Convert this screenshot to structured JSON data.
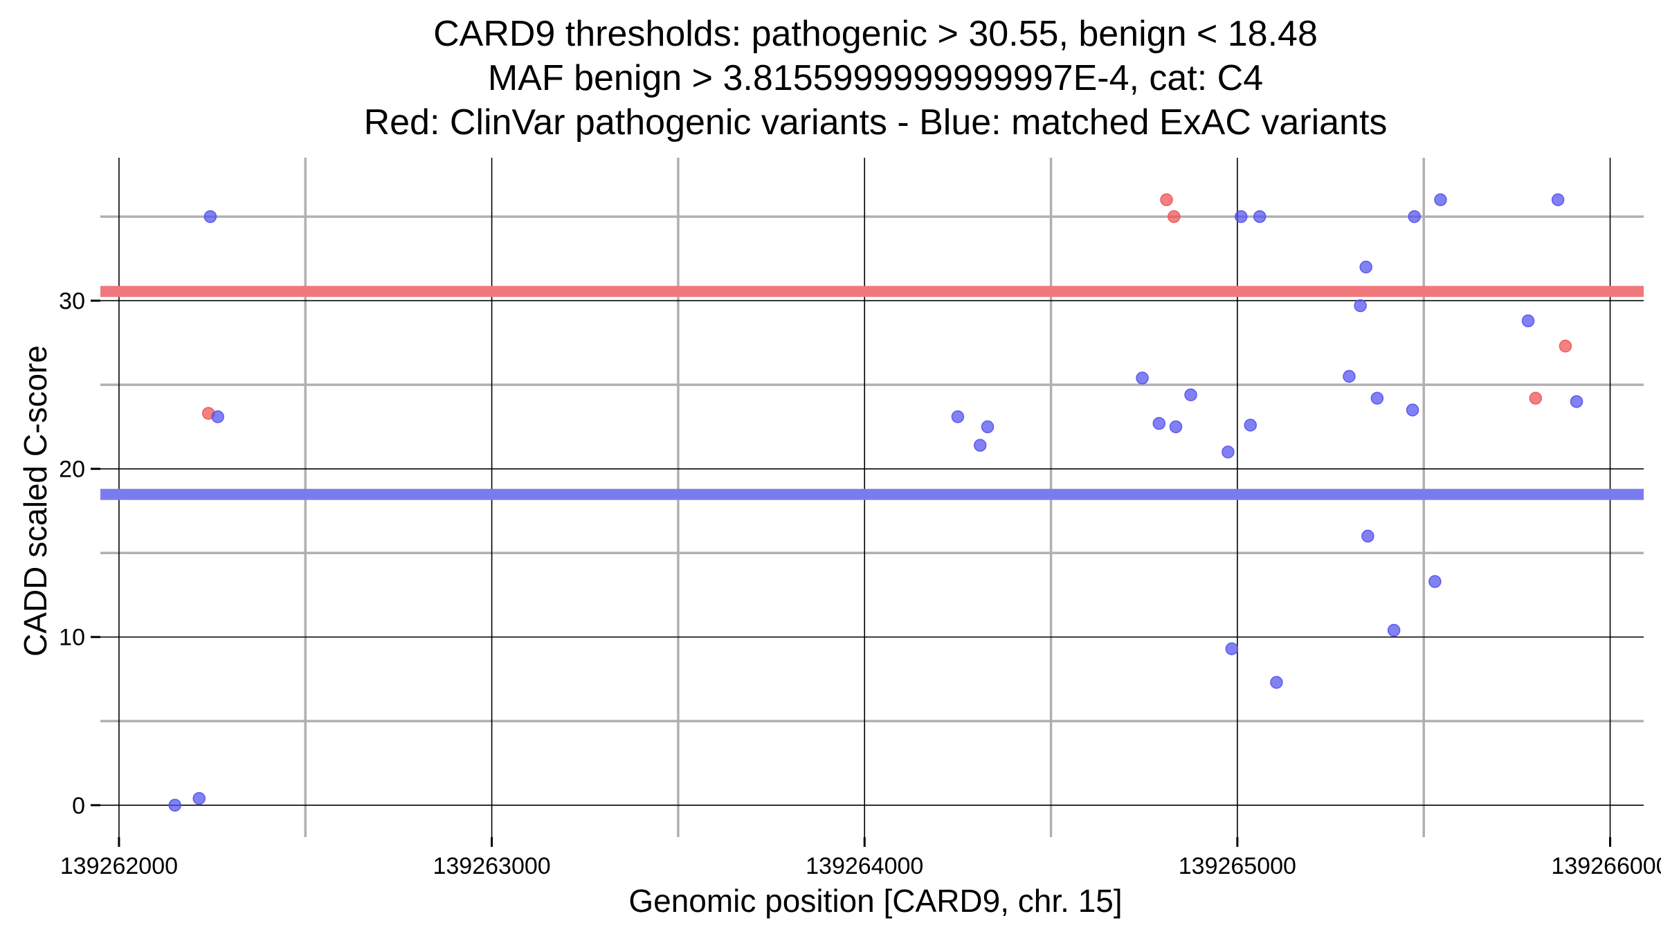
{
  "chart_data": {
    "type": "scatter",
    "title_lines": [
      "CARD9 thresholds: pathogenic > 30.55, benign < 18.48",
      "MAF benign > 3.8155999999999997E-4, cat: C4",
      "Red: ClinVar pathogenic variants - Blue: matched ExAC variants"
    ],
    "xlabel": "Genomic position [CARD9, chr. 15]",
    "ylabel": "CADD scaled C-score",
    "xlim": [
      139261950,
      139266090
    ],
    "ylim": [
      -1.9,
      38.5
    ],
    "x_ticks": [
      139262000,
      139263000,
      139264000,
      139265000,
      139266000
    ],
    "x_tick_labels": [
      "139262000",
      "139263000",
      "139264000",
      "139265000",
      "139266000"
    ],
    "y_ticks": [
      0,
      10,
      20,
      30
    ],
    "y_tick_labels": [
      "0",
      "10",
      "20",
      "30"
    ],
    "x_minor_grid": [
      139262500,
      139263500,
      139264500,
      139265500
    ],
    "y_minor_grid": [
      5,
      15,
      25,
      35
    ],
    "grid": true,
    "thresholds": [
      {
        "name": "pathogenic",
        "value": 30.55,
        "color": "#f0787c"
      },
      {
        "name": "benign",
        "value": 18.48,
        "color": "#7b7bf0"
      }
    ],
    "series": [
      {
        "name": "ClinVar pathogenic variants",
        "color": "#f05050",
        "points": [
          [
            139262240,
            23.3
          ],
          [
            139264810,
            36.0
          ],
          [
            139264830,
            35.0
          ],
          [
            139265800,
            24.2
          ],
          [
            139265880,
            27.3
          ]
        ]
      },
      {
        "name": "matched ExAC variants",
        "color": "#5050f0",
        "points": [
          [
            139262150,
            0.0
          ],
          [
            139262215,
            0.4
          ],
          [
            139262245,
            35.0
          ],
          [
            139262265,
            23.1
          ],
          [
            139264250,
            23.1
          ],
          [
            139264310,
            21.4
          ],
          [
            139264330,
            22.5
          ],
          [
            139264745,
            25.4
          ],
          [
            139264790,
            22.7
          ],
          [
            139264835,
            22.5
          ],
          [
            139264875,
            24.4
          ],
          [
            139264975,
            21.0
          ],
          [
            139264985,
            9.3
          ],
          [
            139265010,
            35.0
          ],
          [
            139265035,
            22.6
          ],
          [
            139265060,
            35.0
          ],
          [
            139265105,
            7.3
          ],
          [
            139265300,
            25.5
          ],
          [
            139265330,
            29.7
          ],
          [
            139265345,
            32.0
          ],
          [
            139265350,
            16.0
          ],
          [
            139265375,
            24.2
          ],
          [
            139265420,
            10.4
          ],
          [
            139265470,
            23.5
          ],
          [
            139265475,
            35.0
          ],
          [
            139265530,
            13.3
          ],
          [
            139265545,
            36.0
          ],
          [
            139265780,
            28.8
          ],
          [
            139265860,
            36.0
          ],
          [
            139265910,
            24.0
          ]
        ]
      }
    ]
  }
}
